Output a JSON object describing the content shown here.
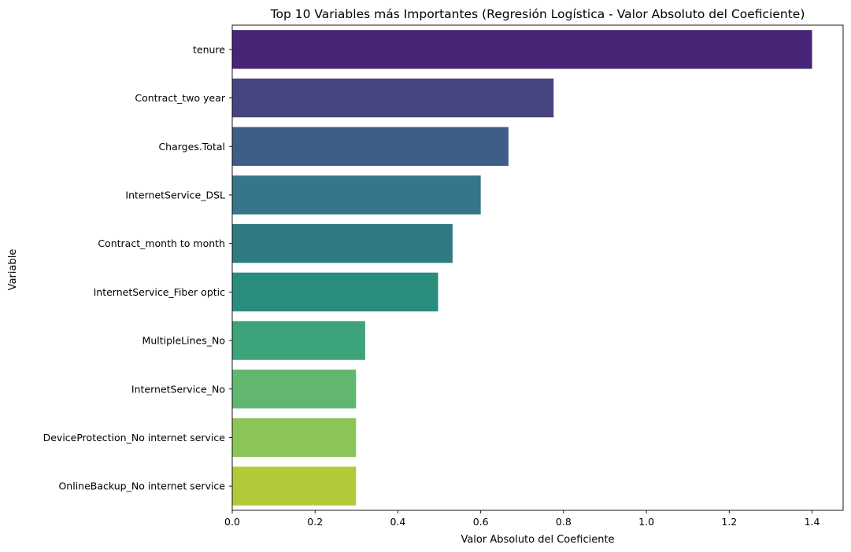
{
  "chart_data": {
    "type": "bar",
    "orientation": "horizontal",
    "title": "Top 10 Variables más Importantes (Regresión Logística - Valor Absoluto del Coeficiente)",
    "xlabel": "Valor Absoluto del Coeficiente",
    "ylabel": "Variable",
    "categories": [
      "tenure",
      "Contract_two year",
      "Charges.Total",
      "InternetService_DSL",
      "Contract_month to month",
      "InternetService_Fiber optic",
      "MultipleLines_No",
      "InternetService_No",
      "DeviceProtection_No internet service",
      "OnlineBackup_No internet service"
    ],
    "values": [
      1.4,
      0.776,
      0.667,
      0.6,
      0.532,
      0.497,
      0.321,
      0.299,
      0.299,
      0.299
    ],
    "colors": [
      "#482576",
      "#46457f",
      "#3f5e87",
      "#37758b",
      "#2f7a80",
      "#2b8d7c",
      "#3ca37b",
      "#62b770",
      "#8bc55a",
      "#b3c93a"
    ],
    "xlim": [
      0,
      1.475
    ],
    "xticks": [
      0.0,
      0.2,
      0.4,
      0.6,
      0.8,
      1.0,
      1.2,
      1.4
    ],
    "xtick_labels": [
      "0.0",
      "0.2",
      "0.4",
      "0.6",
      "0.8",
      "1.0",
      "1.2",
      "1.4"
    ],
    "grid": false,
    "legend": "none"
  }
}
